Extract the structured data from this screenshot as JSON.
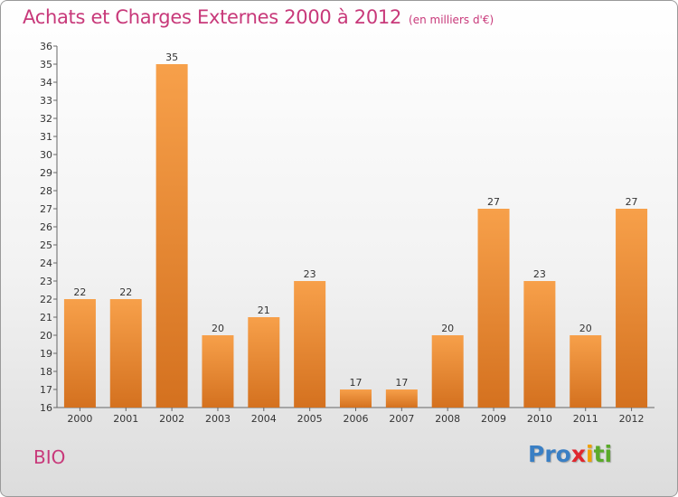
{
  "chart_data": {
    "type": "bar",
    "title": "Achats et Charges Externes 2000 à 2012",
    "subtitle": "(en milliers d'€)",
    "categories": [
      "2000",
      "2001",
      "2002",
      "2003",
      "2004",
      "2005",
      "2006",
      "2007",
      "2008",
      "2009",
      "2010",
      "2011",
      "2012"
    ],
    "values": [
      22,
      22,
      35,
      20,
      21,
      23,
      17,
      17,
      20,
      27,
      23,
      20,
      27
    ],
    "ylim": [
      16,
      36
    ],
    "yticks": [
      16,
      17,
      18,
      19,
      20,
      21,
      22,
      23,
      24,
      25,
      26,
      27,
      28,
      29,
      30,
      31,
      32,
      33,
      34,
      35,
      36
    ],
    "xlabel": "",
    "ylabel": "",
    "grid": false,
    "data_labels": true,
    "bar_color_top": "#f7a04a",
    "bar_color_bottom": "#d4711f"
  },
  "footer": {
    "commune": "BIO",
    "logo_letters": [
      {
        "ch": "P",
        "color": "#3a7fc4"
      },
      {
        "ch": "r",
        "color": "#3a7fc4"
      },
      {
        "ch": "o",
        "color": "#3a7fc4"
      },
      {
        "ch": "x",
        "color": "#e0262d"
      },
      {
        "ch": "i",
        "color": "#f0a000"
      },
      {
        "ch": "t",
        "color": "#5aaa2a"
      },
      {
        "ch": "i",
        "color": "#5aaa2a"
      }
    ]
  },
  "colors": {
    "title": "#c8397a",
    "axis": "#555555"
  }
}
